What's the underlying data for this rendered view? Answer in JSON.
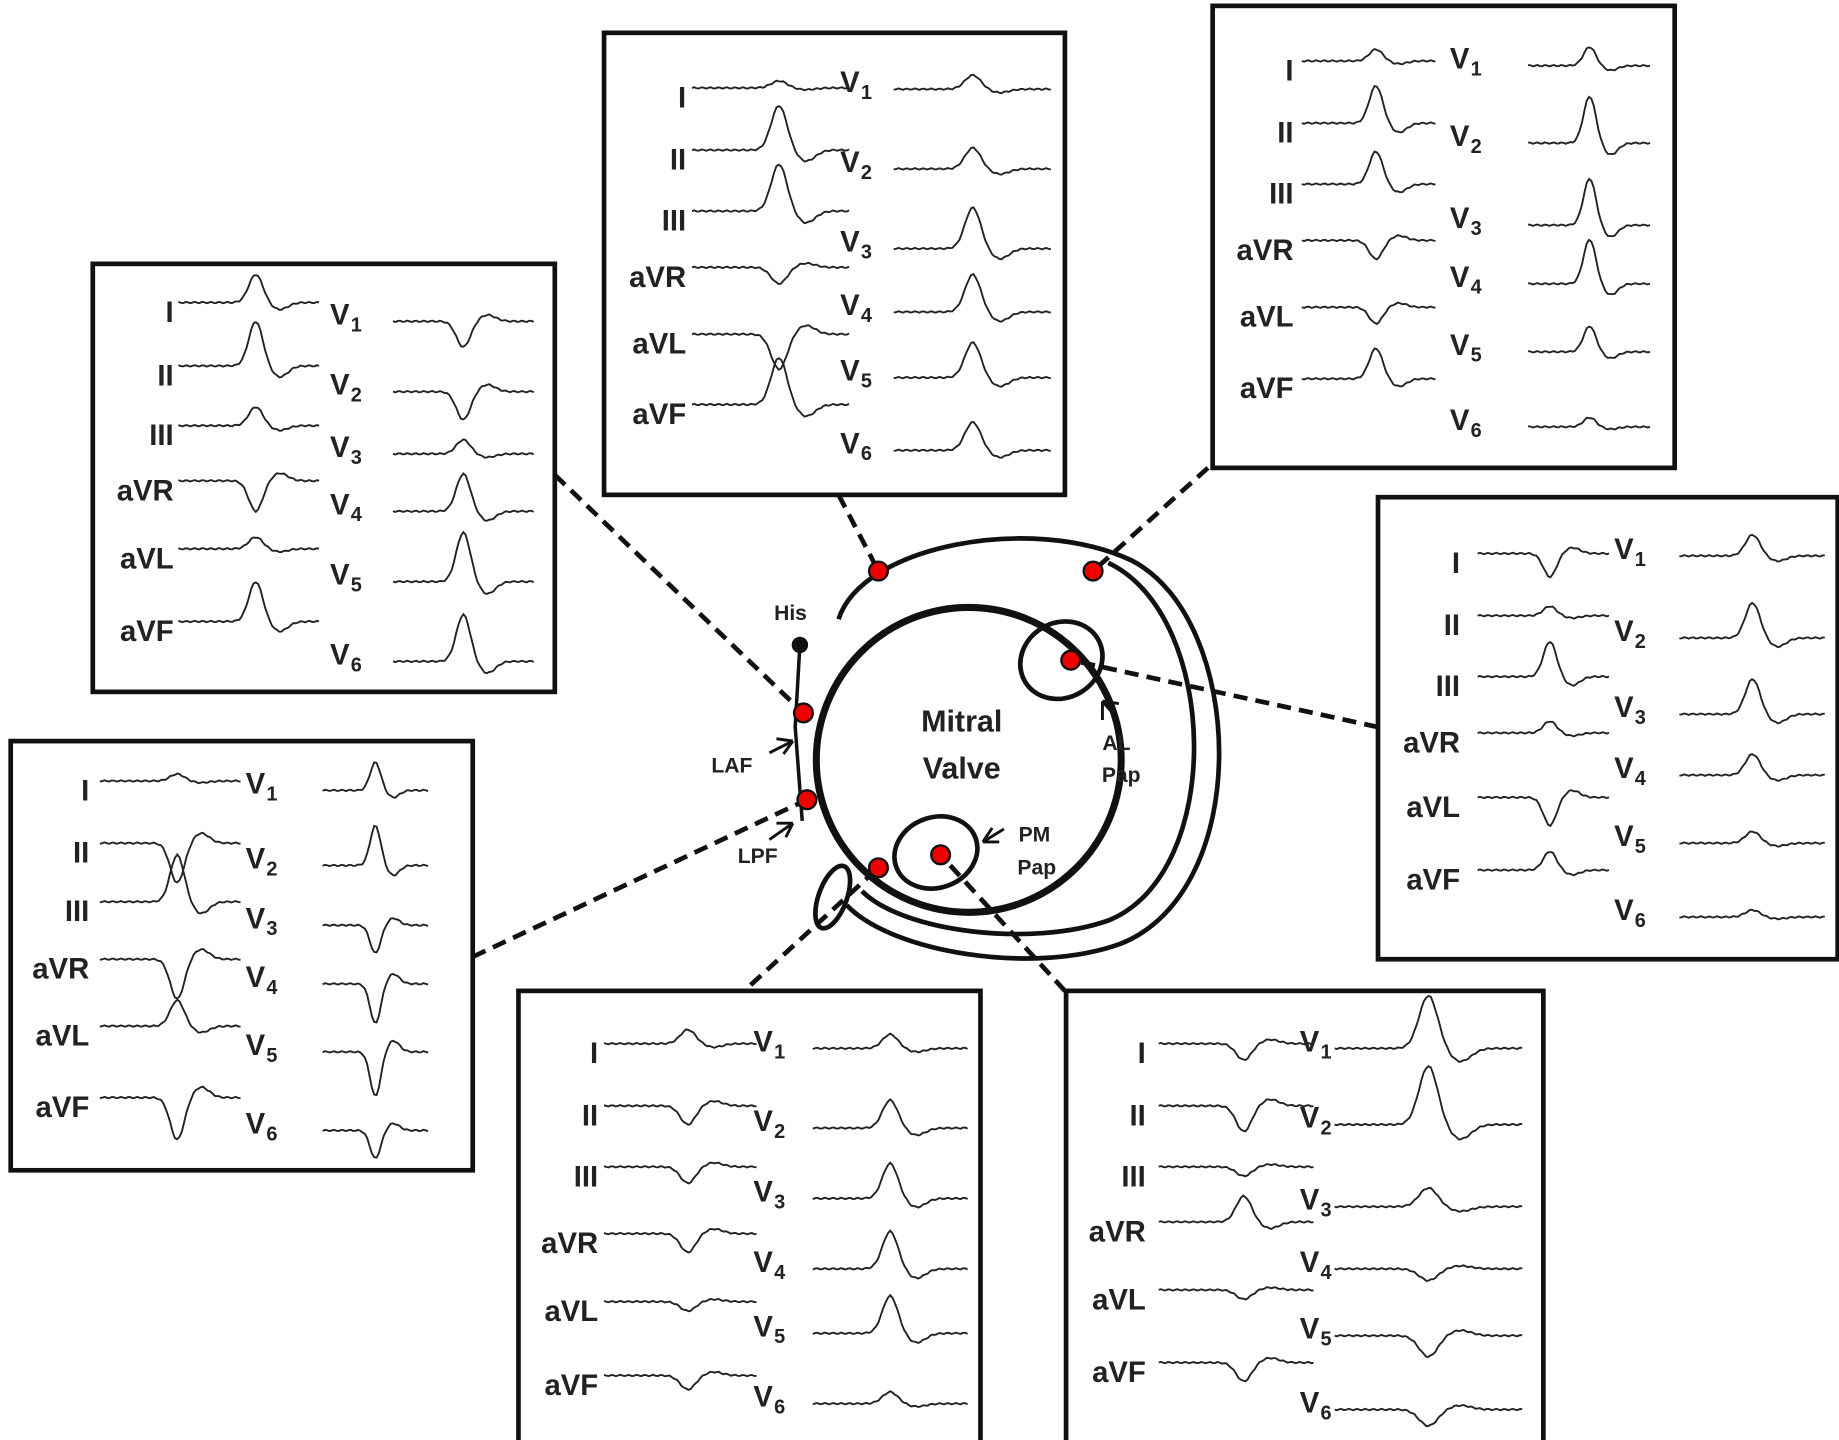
{
  "limb_leads": [
    "I",
    "II",
    "III",
    "aVR",
    "aVL",
    "aVF"
  ],
  "precordial_leads": [
    {
      "letter": "V",
      "sub": "1"
    },
    {
      "letter": "V",
      "sub": "2"
    },
    {
      "letter": "V",
      "sub": "3"
    },
    {
      "letter": "V",
      "sub": "4"
    },
    {
      "letter": "V",
      "sub": "5"
    },
    {
      "letter": "V",
      "sub": "6"
    }
  ],
  "center": {
    "valve": [
      "Mitral",
      "Valve"
    ],
    "his": "His",
    "laf": "LAF",
    "lpf": "LPF",
    "al_pap": [
      "AL",
      "Pap"
    ],
    "pm_pap": [
      "PM",
      "Pap"
    ]
  }
}
